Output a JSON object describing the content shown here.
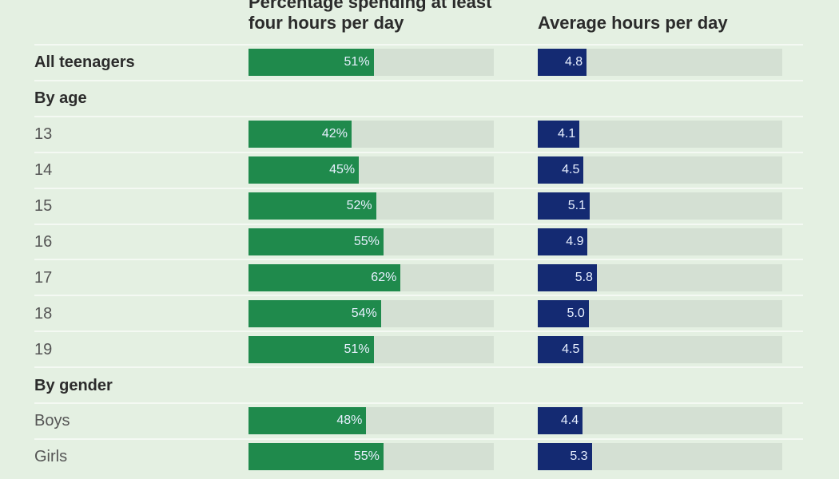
{
  "chart_data": {
    "type": "bar",
    "categories": [
      "All teenagers",
      "By age",
      "13",
      "14",
      "15",
      "16",
      "17",
      "18",
      "19",
      "By gender",
      "Boys",
      "Girls"
    ],
    "bold": [
      true,
      true,
      false,
      false,
      false,
      false,
      false,
      false,
      false,
      true,
      false,
      false
    ],
    "series": [
      {
        "name": "Percentage spending at least four hours per day",
        "color": "#1f8a4c",
        "xlim": [
          0,
          100
        ],
        "values": [
          51,
          null,
          42,
          45,
          52,
          55,
          62,
          54,
          51,
          null,
          48,
          55
        ],
        "value_labels": [
          "51%",
          null,
          "42%",
          "45%",
          "52%",
          "55%",
          "62%",
          "54%",
          "51%",
          null,
          "48%",
          "55%"
        ]
      },
      {
        "name": "Average hours per day",
        "color": "#142a72",
        "xlim": [
          0,
          24
        ],
        "values": [
          4.8,
          null,
          4.1,
          4.5,
          5.1,
          4.9,
          5.8,
          5.0,
          4.5,
          null,
          4.4,
          5.3
        ],
        "value_labels": [
          "4.8",
          null,
          "4.1",
          "4.5",
          "5.1",
          "4.9",
          "5.8",
          "5.0",
          "4.5",
          null,
          "4.4",
          "5.3"
        ]
      }
    ]
  }
}
